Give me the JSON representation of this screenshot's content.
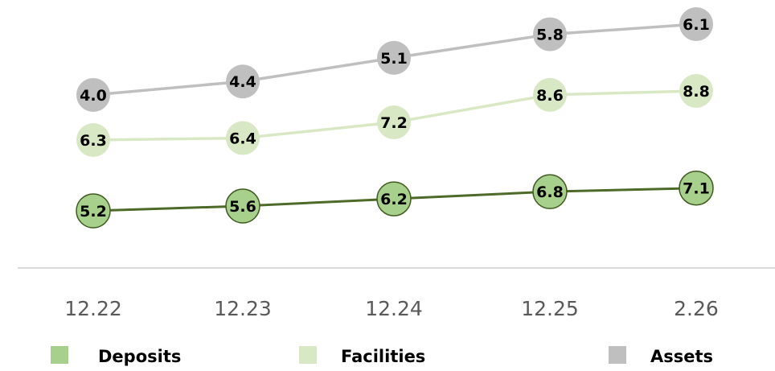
{
  "chart_data": {
    "type": "line",
    "title": "",
    "xlabel": "",
    "ylabel": "",
    "categories": [
      "12.22",
      "12.23",
      "12.24",
      "12.25",
      "2.26"
    ],
    "series": [
      {
        "name": "Deposits",
        "values": [
          5.2,
          5.6,
          6.2,
          6.8,
          7.1
        ],
        "line_color": "#4e6a28",
        "marker_color": "#a8d08d",
        "marker_border": "#3f5a1e"
      },
      {
        "name": "Facilities",
        "values": [
          6.3,
          6.4,
          7.2,
          8.6,
          8.8
        ],
        "line_color": "#d9e8c4",
        "marker_color": "#d9e8c4",
        "marker_border": "#d9e8c4"
      },
      {
        "name": "Assets",
        "values": [
          4.0,
          4.4,
          5.1,
          5.8,
          6.1
        ],
        "line_color": "#bfbfbf",
        "marker_color": "#bfbfbf",
        "marker_border": "#bfbfbf"
      }
    ],
    "grid": false,
    "legend": "bottom",
    "axis_color": "#d9d9d9"
  }
}
